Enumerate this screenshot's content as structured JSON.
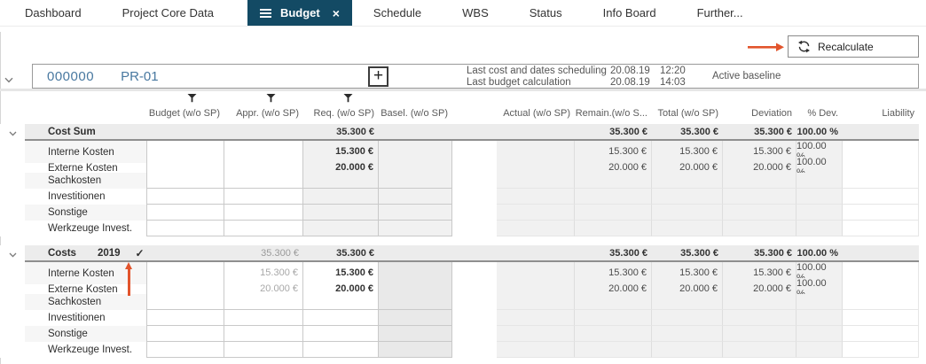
{
  "tabs": [
    {
      "label": "Dashboard",
      "active": false
    },
    {
      "label": "Project Core Data",
      "active": false
    },
    {
      "label": "Budget",
      "active": true
    },
    {
      "label": "Schedule",
      "active": false
    },
    {
      "label": "WBS",
      "active": false
    },
    {
      "label": "Status",
      "active": false
    },
    {
      "label": "Info Board",
      "active": false
    },
    {
      "label": "Further...",
      "active": false
    }
  ],
  "toolbar": {
    "recalculate_label": "Recalculate"
  },
  "project": {
    "id": "000000",
    "code": "PR-01",
    "add_button": "+",
    "last_cost_scheduling_label": "Last cost and dates scheduling",
    "last_cost_scheduling_date": "20.08.19",
    "last_cost_scheduling_time": "12:20",
    "last_budget_calc_label": "Last budget calculation",
    "last_budget_calc_date": "20.08.19",
    "last_budget_calc_time": "14:03",
    "baseline_label": "Active baseline"
  },
  "table": {
    "columns": [
      "Budget (w/o SP)",
      "Appr. (w/o SP)",
      "Req. (w/o SP)",
      "Basel. (w/o SP)",
      "Actual (w/o SP)",
      "Remain.(w/o S...",
      "Total (w/o SP)",
      "Deviation",
      "% Dev.",
      "Liability"
    ],
    "filter_icon_columns": [
      "Budget (w/o SP)",
      "Appr. (w/o SP)",
      "Req. (w/o SP)"
    ],
    "sections": [
      {
        "group": {
          "label": "Cost Sum",
          "year": "",
          "checked": false,
          "budget": "",
          "appr": "",
          "req": "35.300 €",
          "basel": "",
          "actual": "",
          "remain": "35.300 €",
          "total": "35.300 €",
          "deviation": "35.300 €",
          "pdev": "100.00 %",
          "liability": ""
        },
        "rows": [
          {
            "label": "Interne Kosten",
            "budget": "",
            "appr": "",
            "req": "15.300 €",
            "basel": "",
            "actual": "",
            "remain": "15.300 €",
            "total": "15.300 €",
            "deviation": "15.300 €",
            "pdev": "100.00 %",
            "liability": ""
          },
          {
            "label": "Externe Kosten",
            "budget": "",
            "appr": "",
            "req": "20.000 €",
            "basel": "",
            "actual": "",
            "remain": "20.000 €",
            "total": "20.000 €",
            "deviation": "20.000 €",
            "pdev": "100.00 %",
            "liability": ""
          },
          {
            "label": "Sachkosten"
          },
          {
            "label": "Investitionen"
          },
          {
            "label": "Sonstige"
          },
          {
            "label": "Werkzeuge Invest."
          }
        ]
      },
      {
        "group": {
          "label": "Costs",
          "year": "2019",
          "checked": true,
          "budget": "",
          "appr": "35.300 €",
          "req": "35.300 €",
          "basel": "",
          "actual": "",
          "remain": "35.300 €",
          "total": "35.300 €",
          "deviation": "35.300 €",
          "pdev": "100.00 %",
          "liability": ""
        },
        "rows": [
          {
            "label": "Interne Kosten",
            "budget": "",
            "appr": "15.300 €",
            "req": "15.300 €",
            "basel": "",
            "actual": "",
            "remain": "15.300 €",
            "total": "15.300 €",
            "deviation": "15.300 €",
            "pdev": "100.00 %",
            "liability": ""
          },
          {
            "label": "Externe Kosten",
            "budget": "",
            "appr": "20.000 €",
            "req": "20.000 €",
            "basel": "",
            "actual": "",
            "remain": "20.000 €",
            "total": "20.000 €",
            "deviation": "20.000 €",
            "pdev": "100.00 %",
            "liability": ""
          },
          {
            "label": "Sachkosten"
          },
          {
            "label": "Investitionen"
          },
          {
            "label": "Sonstige"
          },
          {
            "label": "Werkzeuge Invest."
          }
        ]
      }
    ]
  },
  "icons": {
    "active_tab_menu": "hamburger-icon",
    "active_tab_close": "close-icon",
    "recalculate": "refresh-icon",
    "column_filter": "filter-icon",
    "expand": "chevron-down-icon",
    "approved": "check-icon",
    "add": "plus-icon"
  },
  "colors": {
    "active_tab": "#134a64",
    "project_id_text": "#4878a0",
    "annotation_arrow": "#e2542c",
    "group_row_bg": "#ececec"
  }
}
